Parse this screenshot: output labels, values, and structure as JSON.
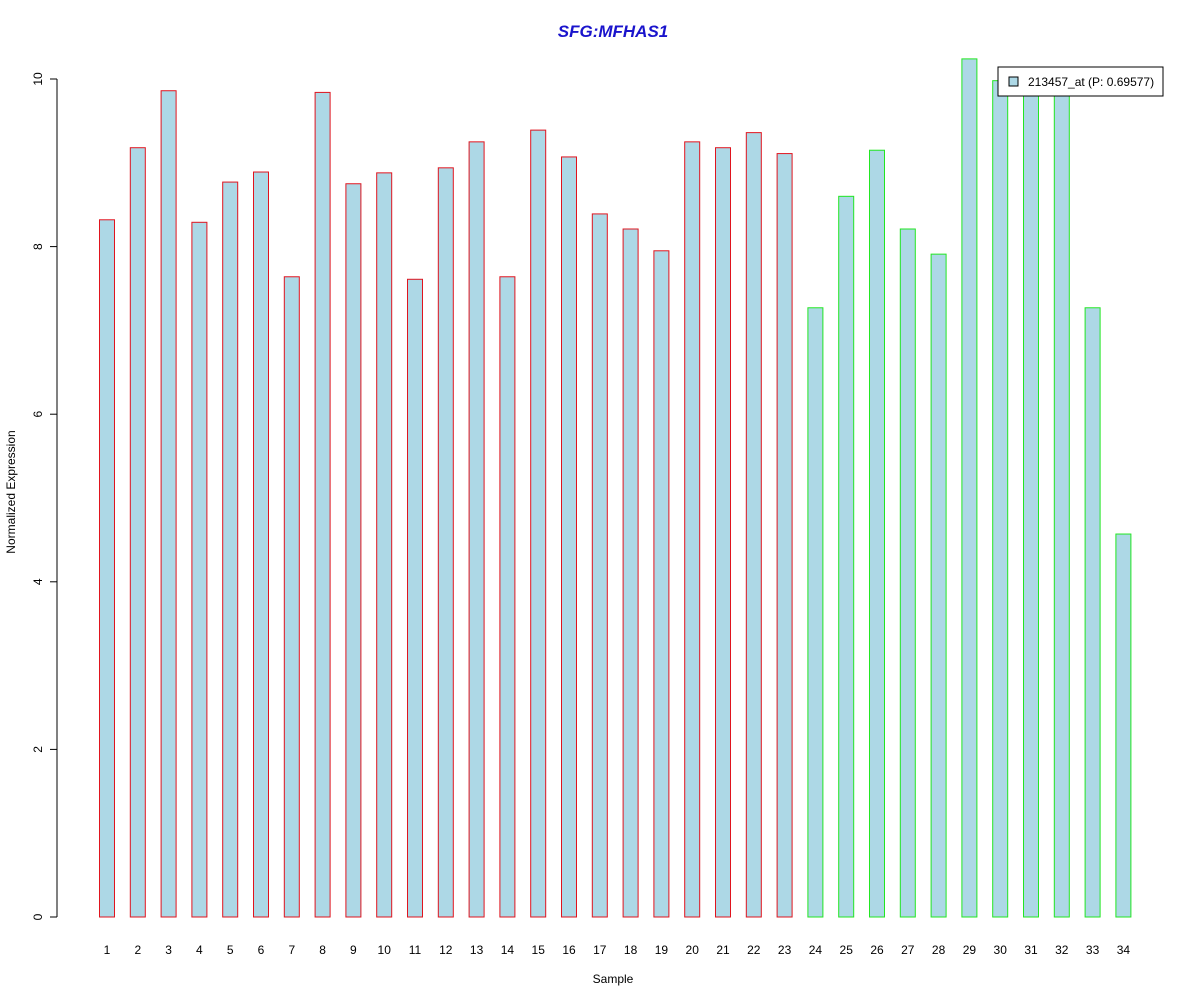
{
  "chart_data": {
    "type": "bar",
    "title": "SFG:MFHAS1",
    "xlabel": "Sample",
    "ylabel": "Normalized Expression",
    "ylim": [
      0,
      10.25
    ],
    "yticks": [
      0,
      2,
      4,
      6,
      8,
      10
    ],
    "grid": false,
    "legend_position": "top-right",
    "categories": [
      "1",
      "2",
      "3",
      "4",
      "5",
      "6",
      "7",
      "8",
      "9",
      "10",
      "11",
      "12",
      "13",
      "14",
      "15",
      "16",
      "17",
      "18",
      "19",
      "20",
      "21",
      "22",
      "23",
      "24",
      "25",
      "26",
      "27",
      "28",
      "29",
      "30",
      "31",
      "32",
      "33",
      "34"
    ],
    "series": [
      {
        "name": "213457_at (P: 0.69577)",
        "values": [
          8.32,
          9.18,
          9.86,
          8.29,
          8.77,
          8.89,
          7.64,
          9.84,
          8.75,
          8.88,
          7.61,
          8.94,
          9.25,
          7.64,
          9.39,
          9.07,
          8.39,
          8.21,
          7.95,
          9.25,
          9.18,
          9.36,
          9.11,
          7.27,
          8.6,
          9.15,
          8.21,
          7.91,
          10.24,
          9.98,
          9.86,
          9.86,
          7.27,
          4.57
        ]
      }
    ],
    "bar_groups": [
      {
        "range": [
          1,
          23
        ],
        "border_color": "#e0141e"
      },
      {
        "range": [
          24,
          34
        ],
        "border_color": "#22e622"
      }
    ]
  },
  "colors": {
    "bar_fill": "#add8e6",
    "title": "#1a14cc",
    "axis": "#000000",
    "legend_border": "#000000"
  }
}
